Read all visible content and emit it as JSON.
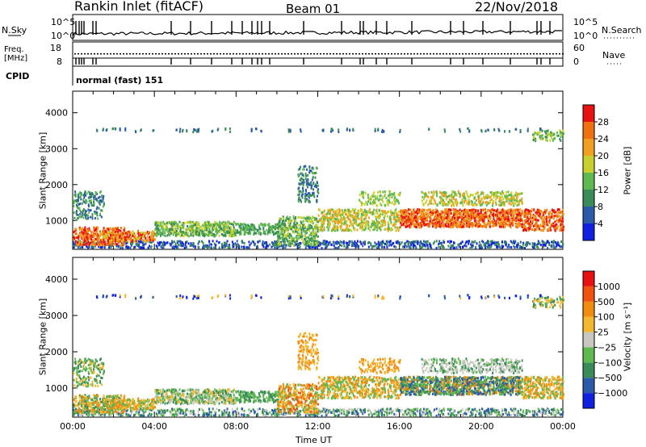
{
  "header": {
    "station": "Rankin Inlet (fitACF)",
    "beam": "Beam 01",
    "date": "22/Nov/2018"
  },
  "top_panels": {
    "nsky_label": "N.Sky",
    "nsky_top": "10^5",
    "nsky_bottom": "10^0",
    "nsearch_label": "N.Search",
    "nsearch_top": "10^5",
    "nsearch_bottom": "10^0",
    "freq_label": "Freq.",
    "freq_unit": "[MHz]",
    "freq_top": "18",
    "freq_bottom": "8",
    "nave_label": "Nave",
    "nave_top": "60",
    "nave_bottom": "0",
    "cpid_label": "CPID",
    "cpid_value": "normal (fast) 151"
  },
  "colors": {
    "power": [
      "#1020e0",
      "#2a5aa8",
      "#3a8a5a",
      "#60b850",
      "#c8d030",
      "#f0a020",
      "#f07010",
      "#e81010"
    ],
    "velocity": [
      "#e81010",
      "#f05010",
      "#f08c10",
      "#f4b830",
      "#c8c8c0",
      "#60b850",
      "#3a8a5a",
      "#2a5aa8",
      "#1020e0"
    ]
  },
  "chart_data": [
    {
      "type": "heatmap",
      "name_ref": "power",
      "ylabel": "Slant Range [km]",
      "xlabel": "",
      "yticks": [
        "1000",
        "2000",
        "3000",
        "4000"
      ],
      "ylim": [
        200,
        4600
      ],
      "colorbar_label": "Power [dB]",
      "colorbar_ticks": [
        "4",
        "8",
        "12",
        "16",
        "20",
        "24",
        "28"
      ],
      "colorbar_range": [
        0,
        32
      ]
    },
    {
      "type": "heatmap",
      "name_ref": "velocity",
      "ylabel": "Slant Range [km]",
      "xlabel": "Time UT",
      "xticks": [
        "00:00",
        "04:00",
        "08:00",
        "12:00",
        "16:00",
        "20:00",
        "00:00"
      ],
      "yticks": [
        "1000",
        "2000",
        "3000",
        "4000"
      ],
      "ylim": [
        200,
        4600
      ],
      "colorbar_label": "Velocity [m s⁻¹]",
      "colorbar_ticks": [
        "1000",
        "500",
        "100",
        "25",
        "−25",
        "−100",
        "−500",
        "−1000"
      ]
    }
  ]
}
